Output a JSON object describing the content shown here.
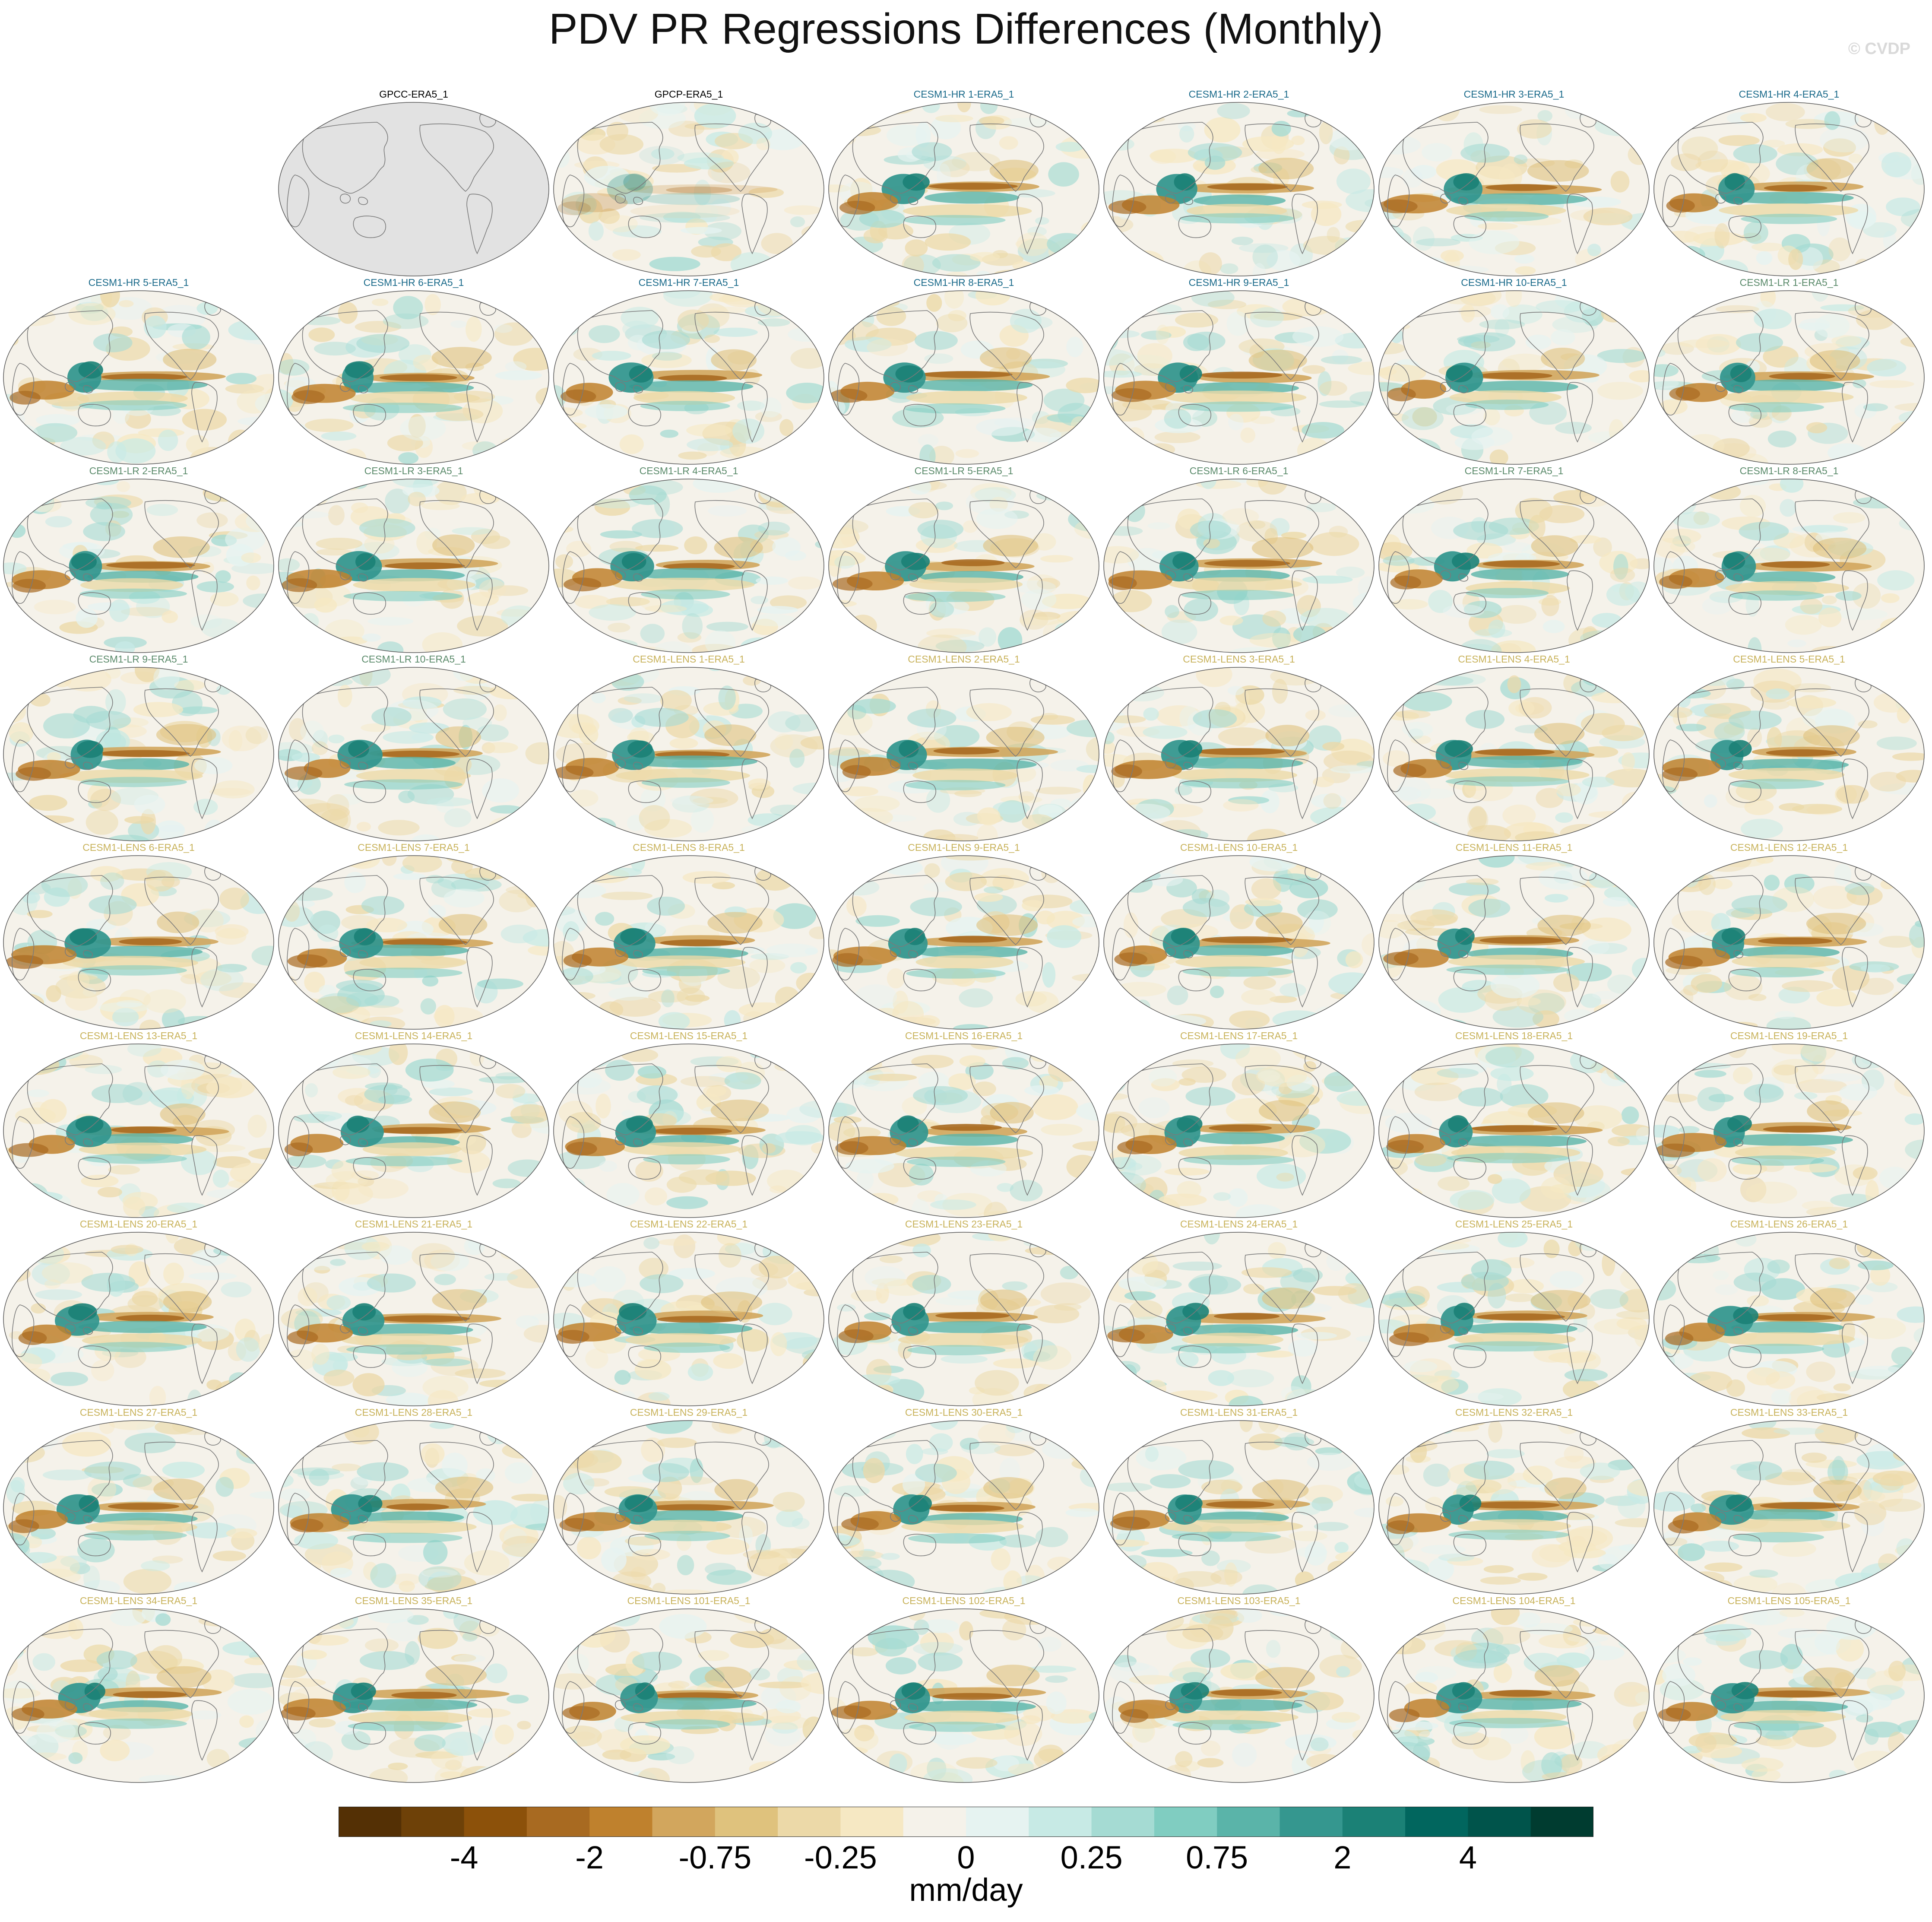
{
  "title": "PDV PR Regressions Differences (Monthly)",
  "watermark": "© CVDP",
  "colors": {
    "obs_title": "#000000",
    "hr_title": "#1a6a8a",
    "lr_title": "#5a8a6a",
    "lens_title": "#c8b25a",
    "land_fill": "#e2e2e2",
    "coast": "#7a7a7a"
  },
  "panels": [
    {
      "label": "GPCC-ERA5_1",
      "group": "obs",
      "fill": "missing"
    },
    {
      "label": "GPCP-ERA5_1",
      "group": "obs"
    },
    {
      "label": "CESM1-HR 1-ERA5_1",
      "group": "hr"
    },
    {
      "label": "CESM1-HR 2-ERA5_1",
      "group": "hr"
    },
    {
      "label": "CESM1-HR 3-ERA5_1",
      "group": "hr"
    },
    {
      "label": "CESM1-HR 4-ERA5_1",
      "group": "hr"
    },
    {
      "label": "CESM1-HR 5-ERA5_1",
      "group": "hr"
    },
    {
      "label": "CESM1-HR 6-ERA5_1",
      "group": "hr"
    },
    {
      "label": "CESM1-HR 7-ERA5_1",
      "group": "hr"
    },
    {
      "label": "CESM1-HR 8-ERA5_1",
      "group": "hr"
    },
    {
      "label": "CESM1-HR 9-ERA5_1",
      "group": "hr"
    },
    {
      "label": "CESM1-HR 10-ERA5_1",
      "group": "hr"
    },
    {
      "label": "CESM1-LR 1-ERA5_1",
      "group": "lr"
    },
    {
      "label": "CESM1-LR 2-ERA5_1",
      "group": "lr"
    },
    {
      "label": "CESM1-LR 3-ERA5_1",
      "group": "lr"
    },
    {
      "label": "CESM1-LR 4-ERA5_1",
      "group": "lr"
    },
    {
      "label": "CESM1-LR 5-ERA5_1",
      "group": "lr"
    },
    {
      "label": "CESM1-LR 6-ERA5_1",
      "group": "lr"
    },
    {
      "label": "CESM1-LR 7-ERA5_1",
      "group": "lr"
    },
    {
      "label": "CESM1-LR 8-ERA5_1",
      "group": "lr"
    },
    {
      "label": "CESM1-LR 9-ERA5_1",
      "group": "lr"
    },
    {
      "label": "CESM1-LR 10-ERA5_1",
      "group": "lr"
    },
    {
      "label": "CESM1-LENS 1-ERA5_1",
      "group": "lens"
    },
    {
      "label": "CESM1-LENS 2-ERA5_1",
      "group": "lens"
    },
    {
      "label": "CESM1-LENS 3-ERA5_1",
      "group": "lens"
    },
    {
      "label": "CESM1-LENS 4-ERA5_1",
      "group": "lens"
    },
    {
      "label": "CESM1-LENS 5-ERA5_1",
      "group": "lens"
    },
    {
      "label": "CESM1-LENS 6-ERA5_1",
      "group": "lens"
    },
    {
      "label": "CESM1-LENS 7-ERA5_1",
      "group": "lens"
    },
    {
      "label": "CESM1-LENS 8-ERA5_1",
      "group": "lens"
    },
    {
      "label": "CESM1-LENS 9-ERA5_1",
      "group": "lens"
    },
    {
      "label": "CESM1-LENS 10-ERA5_1",
      "group": "lens"
    },
    {
      "label": "CESM1-LENS 11-ERA5_1",
      "group": "lens"
    },
    {
      "label": "CESM1-LENS 12-ERA5_1",
      "group": "lens"
    },
    {
      "label": "CESM1-LENS 13-ERA5_1",
      "group": "lens"
    },
    {
      "label": "CESM1-LENS 14-ERA5_1",
      "group": "lens"
    },
    {
      "label": "CESM1-LENS 15-ERA5_1",
      "group": "lens"
    },
    {
      "label": "CESM1-LENS 16-ERA5_1",
      "group": "lens"
    },
    {
      "label": "CESM1-LENS 17-ERA5_1",
      "group": "lens"
    },
    {
      "label": "CESM1-LENS 18-ERA5_1",
      "group": "lens"
    },
    {
      "label": "CESM1-LENS 19-ERA5_1",
      "group": "lens"
    },
    {
      "label": "CESM1-LENS 20-ERA5_1",
      "group": "lens"
    },
    {
      "label": "CESM1-LENS 21-ERA5_1",
      "group": "lens"
    },
    {
      "label": "CESM1-LENS 22-ERA5_1",
      "group": "lens"
    },
    {
      "label": "CESM1-LENS 23-ERA5_1",
      "group": "lens"
    },
    {
      "label": "CESM1-LENS 24-ERA5_1",
      "group": "lens"
    },
    {
      "label": "CESM1-LENS 25-ERA5_1",
      "group": "lens"
    },
    {
      "label": "CESM1-LENS 26-ERA5_1",
      "group": "lens"
    },
    {
      "label": "CESM1-LENS 27-ERA5_1",
      "group": "lens"
    },
    {
      "label": "CESM1-LENS 28-ERA5_1",
      "group": "lens"
    },
    {
      "label": "CESM1-LENS 29-ERA5_1",
      "group": "lens"
    },
    {
      "label": "CESM1-LENS 30-ERA5_1",
      "group": "lens"
    },
    {
      "label": "CESM1-LENS 31-ERA5_1",
      "group": "lens"
    },
    {
      "label": "CESM1-LENS 32-ERA5_1",
      "group": "lens"
    },
    {
      "label": "CESM1-LENS 33-ERA5_1",
      "group": "lens"
    },
    {
      "label": "CESM1-LENS 34-ERA5_1",
      "group": "lens"
    },
    {
      "label": "CESM1-LENS 35-ERA5_1",
      "group": "lens"
    },
    {
      "label": "CESM1-LENS 101-ERA5_1",
      "group": "lens"
    },
    {
      "label": "CESM1-LENS 102-ERA5_1",
      "group": "lens"
    },
    {
      "label": "CESM1-LENS 103-ERA5_1",
      "group": "lens"
    },
    {
      "label": "CESM1-LENS 104-ERA5_1",
      "group": "lens"
    },
    {
      "label": "CESM1-LENS 105-ERA5_1",
      "group": "lens"
    }
  ],
  "colorbar": {
    "colors": [
      "#543005",
      "#6e4108",
      "#8c510a",
      "#a86a21",
      "#bf812d",
      "#d2a65d",
      "#dfc27d",
      "#ecd9a8",
      "#f6e8c3",
      "#f5f2ea",
      "#e6f3f1",
      "#c7eae5",
      "#a5dbd3",
      "#80cdc1",
      "#5ab4a9",
      "#35978f",
      "#1b8176",
      "#01665e",
      "#00544b",
      "#003c30"
    ],
    "tick_labels": [
      "-4",
      "-2",
      "-0.75",
      "-0.25",
      "0",
      "0.25",
      "0.75",
      "2",
      "4"
    ],
    "units": "mm/day"
  }
}
